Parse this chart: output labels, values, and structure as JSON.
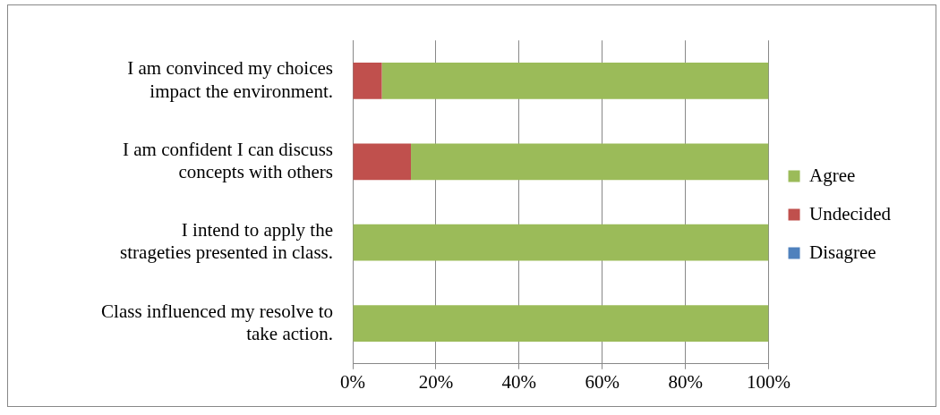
{
  "chart_data": {
    "type": "bar",
    "orientation": "horizontal",
    "stacked": true,
    "categories": [
      "I am convinced my choices impact the environment.",
      "I am confident I can discuss concepts with others",
      "I intend to apply the strageties presented in class.",
      "Class influenced my resolve to take action."
    ],
    "series": [
      {
        "name": "Disagree",
        "color": "#4f81bd",
        "values": [
          0,
          0,
          0,
          0
        ]
      },
      {
        "name": "Undecided",
        "color": "#c0504d",
        "values": [
          7,
          14,
          0,
          0
        ]
      },
      {
        "name": "Agree",
        "color": "#9bbb59",
        "values": [
          93,
          86,
          100,
          100
        ]
      }
    ],
    "xlim": [
      0,
      100
    ],
    "xticks": [
      {
        "value": 0,
        "label": "0%"
      },
      {
        "value": 20,
        "label": "20%"
      },
      {
        "value": 40,
        "label": "40%"
      },
      {
        "value": 60,
        "label": "60%"
      },
      {
        "value": 80,
        "label": "80%"
      },
      {
        "value": 100,
        "label": "100%"
      }
    ],
    "grid": "x",
    "legend": "right"
  }
}
